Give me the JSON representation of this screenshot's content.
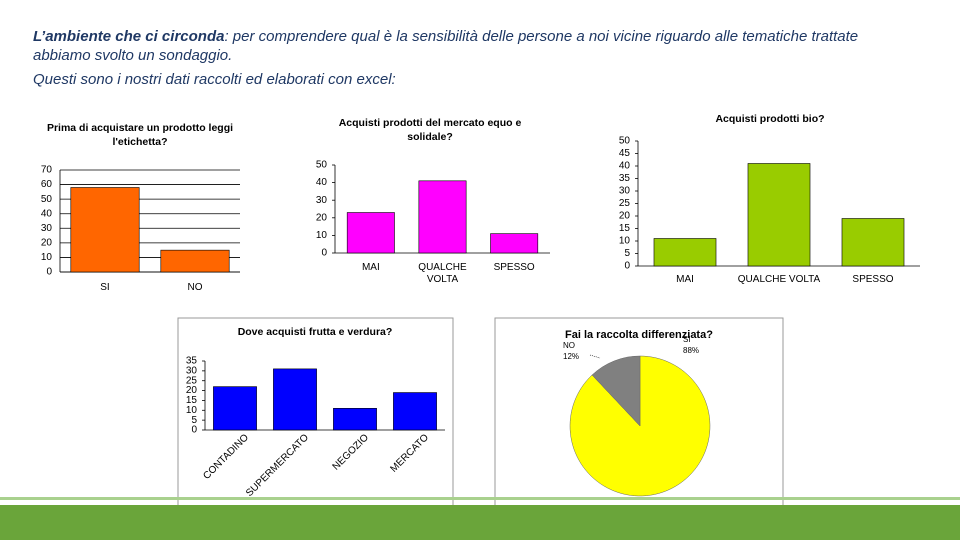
{
  "header": {
    "title": "L’ambiente che ci circonda",
    "text": ": per comprendere qual è la sensibilità delle persone a noi vicine riguardo alle tematiche trattate abbiamo svolto un sondaggio.",
    "line2": "Questi sono i  nostri dati raccolti ed elaborati con excel:"
  },
  "chart_data": [
    {
      "type": "bar",
      "title": "Prima di acquistare un prodotto leggi l'etichetta?",
      "categories": [
        "SI",
        "NO"
      ],
      "values": [
        58,
        15
      ],
      "color": "#ff6600",
      "ylim": [
        0,
        70
      ],
      "yticks": [
        0,
        10,
        20,
        30,
        40,
        50,
        60,
        70
      ],
      "grid": true
    },
    {
      "type": "bar",
      "title": "Acquisti prodotti del mercato equo e solidale?",
      "categories": [
        "MAI",
        "QUALCHE VOLTA",
        "SPESSO"
      ],
      "values": [
        23,
        41,
        11
      ],
      "color": "#ff00ff",
      "ylim": [
        0,
        50
      ],
      "yticks": [
        0,
        10,
        20,
        30,
        40,
        50
      ],
      "grid": false
    },
    {
      "type": "bar",
      "title": "Acquisti prodotti bio?",
      "categories": [
        "MAI",
        "QUALCHE VOLTA",
        "SPESSO"
      ],
      "values": [
        11,
        41,
        19
      ],
      "color": "#99cc00",
      "ylim": [
        0,
        50
      ],
      "yticks": [
        0,
        5,
        10,
        15,
        20,
        25,
        30,
        35,
        40,
        45,
        50
      ],
      "grid": false
    },
    {
      "type": "bar",
      "title": "Dove acquisti frutta e verdura?",
      "categories": [
        "CONTADINO",
        "SUPERMERCATO",
        "NEGOZIO",
        "MERCATO"
      ],
      "values": [
        22,
        31,
        11,
        19
      ],
      "color": "#0000ff",
      "ylim": [
        0,
        35
      ],
      "yticks": [
        0,
        5,
        10,
        15,
        20,
        25,
        30,
        35
      ],
      "grid": false
    },
    {
      "type": "pie",
      "title": "Fai la raccolta differenziata?",
      "categories": [
        "SI",
        "NO"
      ],
      "values": [
        88,
        12
      ],
      "value_labels": [
        "88%",
        "12%"
      ],
      "colors": [
        "#ffff00",
        "#808080"
      ]
    }
  ]
}
